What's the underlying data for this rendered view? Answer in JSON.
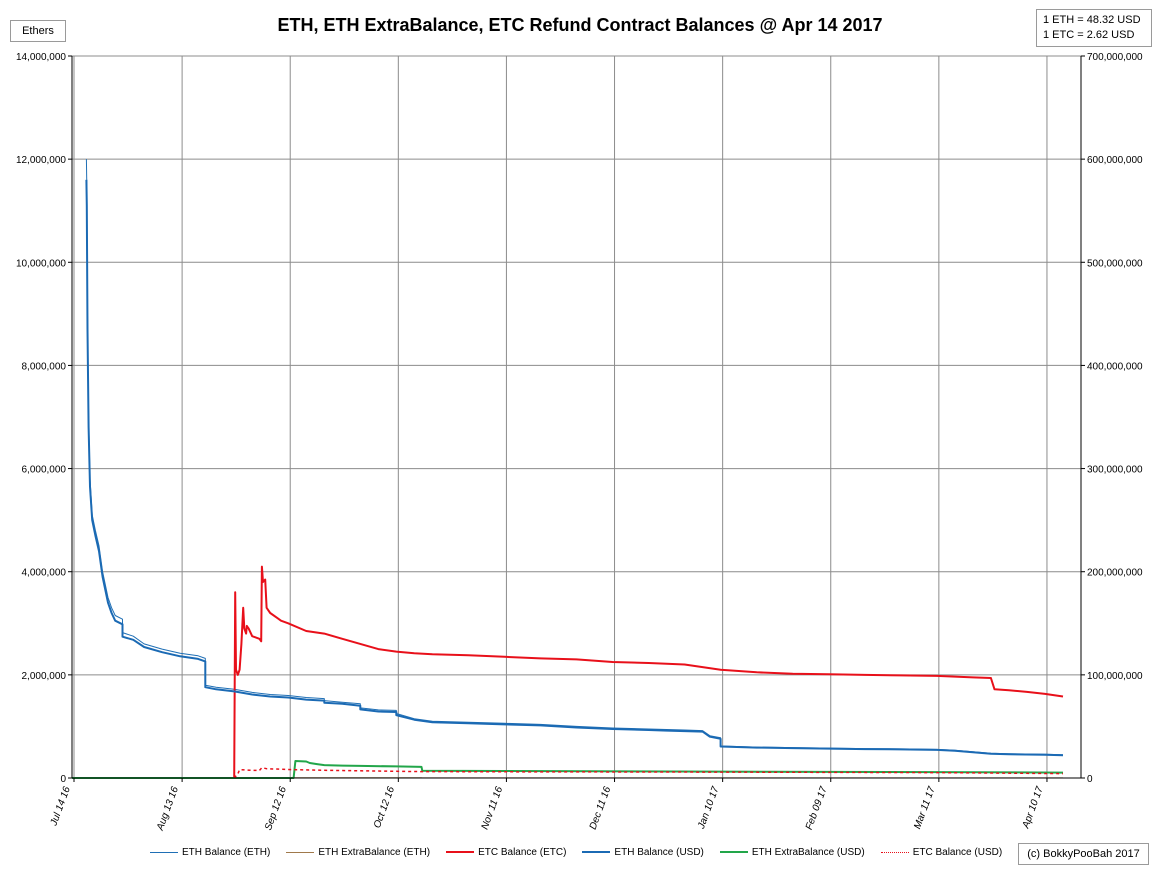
{
  "page": {
    "y_unit_label": "Ethers",
    "rates": [
      "1 ETH = 48.32 USD",
      "1 ETC = 2.62 USD"
    ],
    "credit": "(c) BokkyPooBah 2017"
  },
  "chart_data": {
    "type": "line",
    "title": "ETH, ETH ExtraBalance, ETC Refund Contract Balances @ Apr 14 2017",
    "xlabel": "",
    "ylabel": "Ethers",
    "y2label": "",
    "x_ticks": [
      "Jul 14 16",
      "Aug 13 16",
      "Sep 12 16",
      "Oct 12 16",
      "Nov 11 16",
      "Dec 11 16",
      "Jan 10 17",
      "Feb 09 17",
      "Mar 11 17",
      "Apr 10 17"
    ],
    "xlim_days": [
      0,
      280
    ],
    "x_day_of_ticks": [
      0,
      30,
      60,
      90,
      120,
      150,
      180,
      210,
      240,
      270
    ],
    "ylim": [
      0,
      14000000
    ],
    "y_ticks": [
      "0",
      "2,000,000",
      "4,000,000",
      "6,000,000",
      "8,000,000",
      "10,000,000",
      "12,000,000",
      "14,000,000"
    ],
    "y2lim": [
      0,
      700000000
    ],
    "y2_ticks": [
      "0",
      "100,000,000",
      "200,000,000",
      "300,000,000",
      "400,000,000",
      "500,000,000",
      "600,000,000",
      "700,000,000"
    ],
    "grid": true,
    "legend_position": "bottom",
    "series": [
      {
        "name": "ETH Balance (ETH)",
        "axis": "left",
        "color": "#1f6fb5",
        "width": 1,
        "dash": "",
        "x": [
          4,
          4.1,
          4.3,
          4.6,
          5,
          5.6,
          6.5,
          7.5,
          8.5,
          10,
          11,
          12,
          14,
          14,
          17,
          20,
          25,
          30,
          35,
          37,
          37,
          40,
          45,
          50,
          55,
          60,
          65,
          70,
          70,
          75,
          80,
          80,
          85,
          90,
          90,
          95,
          100,
          110,
          120,
          130,
          140,
          150,
          160,
          165,
          170,
          175,
          177,
          180,
          180,
          190,
          200,
          210,
          220,
          230,
          240,
          245,
          250,
          255,
          260,
          270,
          275
        ],
        "y": [
          12000000,
          11500000,
          9000000,
          7000000,
          5800000,
          5100000,
          4800000,
          4500000,
          4000000,
          3500000,
          3300000,
          3150000,
          3080000,
          2820000,
          2750000,
          2600000,
          2500000,
          2420000,
          2370000,
          2320000,
          1800000,
          1760000,
          1720000,
          1660000,
          1620000,
          1600000,
          1560000,
          1540000,
          1500000,
          1470000,
          1440000,
          1360000,
          1320000,
          1310000,
          1250000,
          1150000,
          1100000,
          1080000,
          1060000,
          1040000,
          1000000,
          970000,
          950000,
          940000,
          930000,
          920000,
          820000,
          780000,
          620000,
          600000,
          590000,
          580000,
          570000,
          565000,
          555000,
          540000,
          510000,
          480000,
          470000,
          460000,
          450000
        ]
      },
      {
        "name": "ETH ExtraBalance (ETH)",
        "axis": "left",
        "color": "#a0794b",
        "width": 1,
        "dash": "",
        "x": [
          0,
          60,
          60.2,
          70,
          90,
          97,
          97.2,
          120,
          180,
          240,
          275
        ],
        "y": [
          0,
          0,
          6000,
          6500,
          4500,
          4200,
          2500,
          2600,
          2500,
          2400,
          2300
        ]
      },
      {
        "name": "ETC Balance (ETC)",
        "axis": "left",
        "color": "#e8101a",
        "width": 2,
        "dash": "",
        "x": [
          45,
          45.3,
          45.5,
          46,
          46.5,
          47,
          47.5,
          47.8,
          48.3,
          48.5,
          49,
          50,
          52,
          52.5,
          52.7,
          53,
          53.6,
          54,
          55,
          57,
          58,
          60,
          65,
          70,
          75,
          80,
          85,
          90,
          95,
          100,
          110,
          120,
          130,
          140,
          150,
          160,
          170,
          180,
          190,
          200,
          210,
          220,
          230,
          240,
          250,
          255,
          256,
          260,
          265,
          270,
          275
        ],
        "y": [
          0,
          3600000,
          2100000,
          2000000,
          2100000,
          2600000,
          3300000,
          2900000,
          2800000,
          2950000,
          2900000,
          2750000,
          2700000,
          2650000,
          4100000,
          3800000,
          3850000,
          3300000,
          3200000,
          3100000,
          3050000,
          3000000,
          2850000,
          2800000,
          2700000,
          2600000,
          2500000,
          2450000,
          2420000,
          2400000,
          2380000,
          2350000,
          2320000,
          2300000,
          2250000,
          2230000,
          2200000,
          2100000,
          2050000,
          2020000,
          2010000,
          2000000,
          1990000,
          1980000,
          1950000,
          1940000,
          1720000,
          1700000,
          1670000,
          1630000,
          1580000
        ]
      },
      {
        "name": "ETH Balance (USD)",
        "axis": "left",
        "color": "#1b6ab4",
        "width": 2,
        "dash": "",
        "x": [
          4,
          4.1,
          4.3,
          4.6,
          5,
          5.6,
          6.5,
          7.5,
          8.5,
          10,
          11,
          12,
          14,
          14,
          17,
          20,
          25,
          30,
          35,
          37,
          37,
          40,
          45,
          50,
          55,
          60,
          65,
          70,
          70,
          75,
          80,
          80,
          85,
          90,
          90,
          95,
          100,
          110,
          120,
          130,
          140,
          150,
          160,
          165,
          170,
          175,
          177,
          180,
          180,
          190,
          200,
          210,
          220,
          230,
          240,
          245,
          250,
          255,
          260,
          270,
          275
        ],
        "y": [
          11600000,
          11100000,
          8700000,
          6800000,
          5650000,
          5000000,
          4700000,
          4400000,
          3900000,
          3400000,
          3200000,
          3050000,
          2980000,
          2740000,
          2680000,
          2540000,
          2440000,
          2360000,
          2310000,
          2260000,
          1760000,
          1720000,
          1680000,
          1620000,
          1580000,
          1560000,
          1520000,
          1500000,
          1460000,
          1440000,
          1400000,
          1330000,
          1290000,
          1280000,
          1220000,
          1130000,
          1080000,
          1060000,
          1040000,
          1020000,
          980000,
          950000,
          930000,
          920000,
          910000,
          900000,
          800000,
          760000,
          610000,
          590000,
          580000,
          570000,
          560000,
          555000,
          545000,
          530000,
          500000,
          470000,
          460000,
          450000,
          440000
        ]
      },
      {
        "name": "ETH ExtraBalance (USD)",
        "axis": "left",
        "color": "#22a64a",
        "width": 2,
        "dash": "",
        "x": [
          0,
          61.5,
          62,
          65,
          66,
          68,
          70,
          75,
          80,
          90,
          97,
          97.2,
          120,
          180,
          240,
          275
        ],
        "y": [
          0,
          0,
          330000,
          320000,
          290000,
          270000,
          250000,
          240000,
          235000,
          225000,
          215000,
          140000,
          135000,
          125000,
          115000,
          105000
        ]
      },
      {
        "name": "ETC Balance (USD)",
        "axis": "left",
        "color": "#e8101a",
        "width": 1.5,
        "dash": "3,3",
        "x": [
          45,
          46,
          46.5,
          50,
          52,
          52.7,
          54,
          60,
          70,
          80,
          90,
          97,
          120,
          180,
          240,
          275
        ],
        "y": [
          0,
          80000,
          160000,
          150000,
          145000,
          200000,
          180000,
          165000,
          150000,
          140000,
          130000,
          125000,
          120000,
          115000,
          105000,
          85000
        ]
      }
    ]
  }
}
